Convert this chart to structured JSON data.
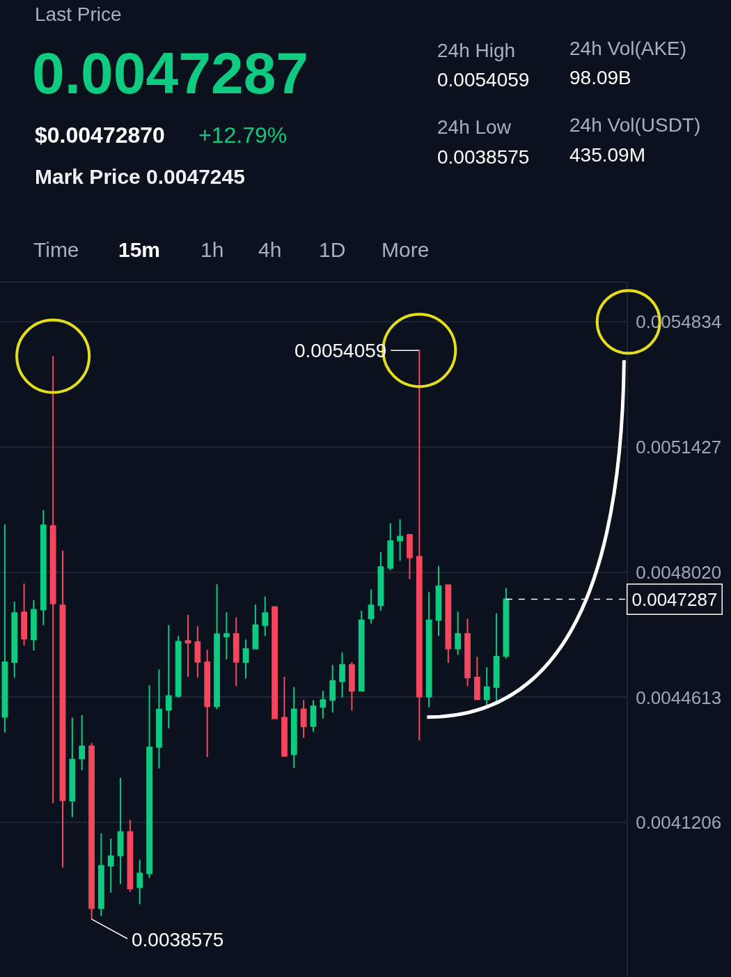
{
  "chart_data": {
    "type": "candlestick",
    "annotations": [
      "Last Price",
      "0.0047287",
      "$0.00472870",
      "+12.79%",
      "Mark Price 0.0047245",
      "24h High",
      "0.0054059",
      "24h Vol(AKE)",
      "98.09B",
      "24h Low",
      "0.0038575",
      "24h Vol(USDT)",
      "435.09M",
      "Time",
      "15m",
      "1h",
      "4h",
      "1D",
      "More",
      "0.0054059",
      "0.0038575"
    ],
    "categories": [
      null,
      null,
      null,
      null,
      null,
      null,
      null,
      null,
      null,
      null,
      null,
      null,
      null,
      null,
      null,
      null,
      null,
      null,
      null,
      null,
      null,
      null,
      null,
      null,
      null,
      null,
      null,
      null,
      null,
      null,
      null,
      null,
      null,
      null,
      null,
      null,
      null,
      null,
      null,
      null,
      null,
      null,
      null,
      null,
      null,
      null,
      null,
      null,
      null,
      null,
      null,
      null,
      null,
      null,
      null,
      null,
      null,
      null,
      null,
      null,
      null,
      null,
      null,
      null,
      null
    ],
    "ohlc": [
      [
        0.004408,
        0.004932,
        0.004366,
        0.004557
      ],
      [
        0.004557,
        0.004722,
        0.004515,
        0.004691
      ],
      [
        0.004693,
        0.004771,
        0.004603,
        0.004621
      ],
      [
        0.004619,
        0.004726,
        0.004589,
        0.0047
      ],
      [
        0.0047,
        0.004971,
        0.004658,
        0.00493
      ],
      [
        0.004928,
        0.00539,
        0.004173,
        0.004717
      ],
      [
        0.004712,
        0.004861,
        0.003998,
        0.004181
      ],
      [
        0.00418,
        0.004406,
        0.004135,
        0.004292
      ],
      [
        0.004295,
        0.004413,
        0.004263,
        0.004328
      ],
      [
        0.004328,
        0.004337,
        0.0038575,
        0.003887
      ],
      [
        0.003887,
        0.004091,
        0.003866,
        0.004003
      ],
      [
        0.004003,
        0.004077,
        0.00393,
        0.004029
      ],
      [
        0.004031,
        0.004242,
        0.003953,
        0.004095
      ],
      [
        0.004095,
        0.004128,
        0.003932,
        0.003941
      ],
      [
        0.003944,
        0.004019,
        0.003898,
        0.003982
      ],
      [
        0.003982,
        0.004494,
        0.00397,
        0.004325
      ],
      [
        0.004326,
        0.004537,
        0.004268,
        0.004428
      ],
      [
        0.004427,
        0.004658,
        0.004377,
        0.004465
      ],
      [
        0.004465,
        0.004629,
        0.00446,
        0.004613
      ],
      [
        0.004615,
        0.004686,
        0.004517,
        0.00461
      ],
      [
        0.004612,
        0.004655,
        0.004515,
        0.004558
      ],
      [
        0.004557,
        0.004591,
        0.004299,
        0.004437
      ],
      [
        0.004437,
        0.004769,
        0.004429,
        0.004633
      ],
      [
        0.004627,
        0.004693,
        0.004565,
        0.004634
      ],
      [
        0.004634,
        0.004679,
        0.004492,
        0.004558
      ],
      [
        0.004557,
        0.004619,
        0.004513,
        0.004593
      ],
      [
        0.004594,
        0.004714,
        0.004594,
        0.004658
      ],
      [
        0.004658,
        0.004736,
        0.004629,
        0.004691
      ],
      [
        0.004707,
        0.00471,
        0.004403,
        0.004404
      ],
      [
        0.004406,
        0.004517,
        0.004299,
        0.004302
      ],
      [
        0.004306,
        0.004489,
        0.004269,
        0.004429
      ],
      [
        0.004429,
        0.004454,
        0.004351,
        0.004382
      ],
      [
        0.004383,
        0.004453,
        0.004368,
        0.004437
      ],
      [
        0.004435,
        0.004479,
        0.004404,
        0.004454
      ],
      [
        0.004454,
        0.00455,
        0.00442,
        0.004506
      ],
      [
        0.004505,
        0.004584,
        0.004461,
        0.00455
      ],
      [
        0.00455,
        0.004557,
        0.004425,
        0.004479
      ],
      [
        0.004479,
        0.004697,
        0.004479,
        0.004671
      ],
      [
        0.004676,
        0.004755,
        0.004662,
        0.004712
      ],
      [
        0.004712,
        0.004857,
        0.004697,
        0.004816
      ],
      [
        0.004814,
        0.004935,
        0.004807,
        0.004887
      ],
      [
        0.004888,
        0.004946,
        0.004833,
        0.004899
      ],
      [
        0.004904,
        0.004906,
        0.004783,
        0.004842
      ],
      [
        0.004844,
        0.0054059,
        0.004344,
        0.004463
      ],
      [
        0.004463,
        0.004748,
        0.004434,
        0.004671
      ],
      [
        0.004672,
        0.004819,
        0.004629,
        0.004764
      ],
      [
        0.004767,
        0.004767,
        0.004555,
        0.004594
      ],
      [
        0.004594,
        0.004695,
        0.004577,
        0.004634
      ],
      [
        0.004634,
        0.004676,
        0.004492,
        0.004515
      ],
      [
        0.004515,
        0.004572,
        0.004454,
        0.004456
      ],
      [
        0.004456,
        0.004543,
        0.004439,
        0.004489
      ],
      [
        0.004489,
        0.00469,
        0.004451,
        0.004572
      ],
      [
        0.004574,
        0.004759,
        0.004567,
        0.0047287
      ],
      null,
      null,
      null,
      null,
      null,
      null,
      null,
      null,
      null,
      null,
      null,
      null
    ],
    "colors": [
      "#0ecb81",
      "#0ecb81",
      "#f6465d",
      "#0ecb81",
      "#0ecb81",
      "#f6465d",
      "#f6465d",
      "#0ecb81",
      "#0ecb81",
      "#f6465d",
      "#0ecb81",
      "#0ecb81",
      "#0ecb81",
      "#f6465d",
      "#0ecb81",
      "#0ecb81",
      "#0ecb81",
      "#0ecb81",
      "#0ecb81",
      "#f6465d",
      "#f6465d",
      "#f6465d",
      "#0ecb81",
      "#0ecb81",
      "#f6465d",
      "#0ecb81",
      "#0ecb81",
      "#0ecb81",
      "#f6465d",
      "#f6465d",
      "#0ecb81",
      "#f6465d",
      "#0ecb81",
      "#0ecb81",
      "#0ecb81",
      "#0ecb81",
      "#f6465d",
      "#0ecb81",
      "#0ecb81",
      "#0ecb81",
      "#0ecb81",
      "#0ecb81",
      "#f6465d",
      "#f6465d",
      "#0ecb81",
      "#0ecb81",
      "#f6465d",
      "#0ecb81",
      "#f6465d",
      "#f6465d",
      "#0ecb81",
      "#0ecb81",
      "#0ecb81",
      null,
      null,
      null,
      null,
      null,
      null,
      null,
      null,
      null,
      null,
      null,
      null
    ],
    "ylim": [
      0.0037,
      0.005592
    ],
    "yticks": [
      0.0054834,
      0.0051427,
      {
        "value": 0.004802,
        "label": "0.0048020"
      },
      0.0044613,
      0.0041206
    ],
    "ref_lines": [
      {
        "axis": "y",
        "value": 0.0047287,
        "label": "0.0047287",
        "color": "#ffffff",
        "line_style": "dashed"
      }
    ],
    "grid": "y"
  }
}
